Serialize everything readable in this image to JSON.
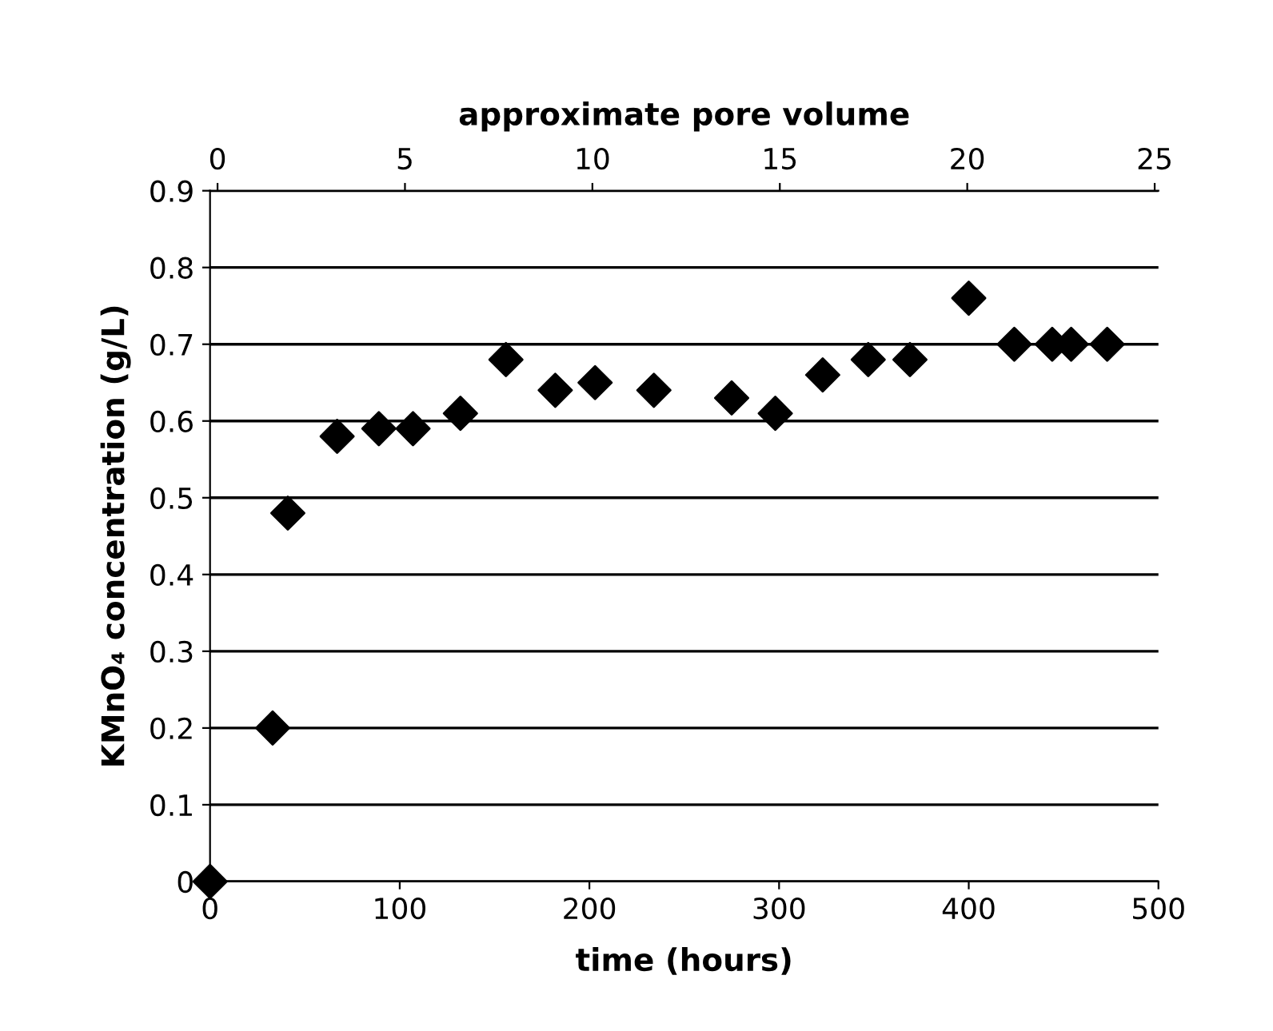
{
  "chart_data": {
    "type": "scatter",
    "xlabel": "time (hours)",
    "ylabel": "KMnO₄ concentration (g/L)",
    "x2label": "approximate pore volume",
    "x": [
      0,
      33,
      41,
      67,
      89,
      107,
      132,
      156,
      182,
      203,
      234,
      275,
      298,
      323,
      347,
      369,
      400,
      424,
      444,
      454,
      473
    ],
    "values": [
      0,
      0.2,
      0.48,
      0.58,
      0.59,
      0.59,
      0.61,
      0.68,
      0.64,
      0.65,
      0.64,
      0.63,
      0.61,
      0.66,
      0.68,
      0.68,
      0.76,
      0.7,
      0.7,
      0.7,
      0.7
    ],
    "color": "#000000",
    "marker": "diamond",
    "xlim": [
      0,
      500
    ],
    "xticks": [
      0,
      100,
      200,
      300,
      400,
      500
    ],
    "ylim": [
      0,
      0.9
    ],
    "yticks": [
      {
        "value": 0,
        "label": "0"
      },
      0.1,
      0.2,
      0.3,
      0.4,
      0.5,
      0.6,
      0.7,
      0.8,
      0.9
    ],
    "x2lim": [
      -0.2,
      25.1
    ],
    "x2ticks": [
      0,
      5,
      10,
      15,
      20,
      25
    ],
    "grid": "y"
  }
}
